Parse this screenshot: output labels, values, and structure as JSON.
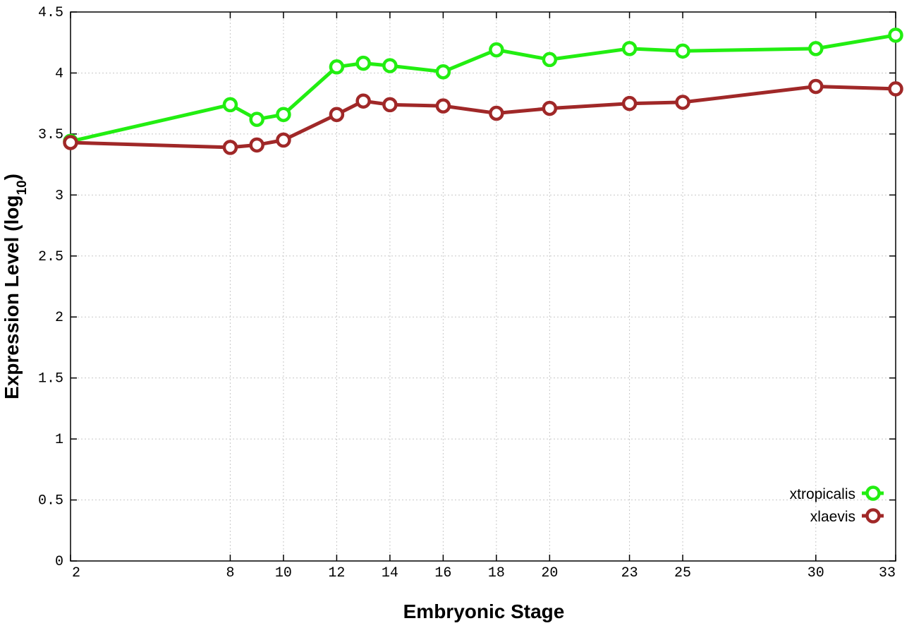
{
  "chart_data": {
    "type": "line",
    "title": "",
    "xlabel": "Embryonic Stage",
    "ylabel_main": "Expression Level (log",
    "ylabel_sub": "10",
    "ylabel_end": ")",
    "x_ticks": [
      2,
      8,
      10,
      12,
      14,
      16,
      18,
      20,
      23,
      25,
      30,
      33
    ],
    "y_ticks": [
      "0",
      "0.5",
      "1",
      "1.5",
      "2",
      "2.5",
      "3",
      "3.5",
      "4",
      "4.5"
    ],
    "xlim": [
      2,
      33
    ],
    "ylim": [
      0,
      4.5
    ],
    "grid": true,
    "legend_position": "bottom-right",
    "x": [
      2,
      8,
      9,
      10,
      12,
      13,
      14,
      16,
      18,
      20,
      23,
      25,
      30,
      33
    ],
    "series": [
      {
        "name": "xtropicalis",
        "color": "#22ee11",
        "values": [
          3.44,
          3.74,
          3.62,
          3.66,
          4.05,
          4.08,
          4.06,
          4.01,
          4.19,
          4.11,
          4.2,
          4.18,
          4.2,
          4.31
        ]
      },
      {
        "name": "xlaevis",
        "color": "#a02828",
        "values": [
          3.43,
          3.39,
          3.41,
          3.45,
          3.66,
          3.77,
          3.74,
          3.73,
          3.67,
          3.71,
          3.75,
          3.76,
          3.89,
          3.87
        ]
      }
    ]
  }
}
